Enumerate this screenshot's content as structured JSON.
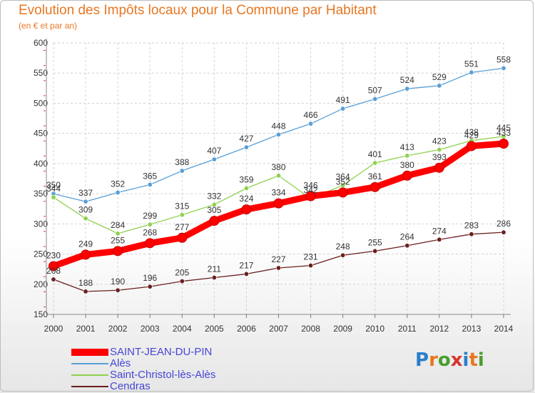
{
  "title": "Evolution des Impôts locaux pour la Commune par Habitant",
  "subtitle": "(en € et par an)",
  "logo": {
    "text": [
      "P",
      "r",
      "o",
      "x",
      "i",
      "t",
      "i"
    ],
    "colors": [
      "#2a7fc9",
      "#e87722",
      "#4a9e2f",
      "#d6342c",
      "#2a7fc9",
      "#e87722",
      "#4a9e2f"
    ]
  },
  "chart_data": {
    "type": "line",
    "title": "Evolution des Impôts locaux pour la Commune par Habitant",
    "subtitle": "(en € et par an)",
    "xlabel": "",
    "ylabel": "",
    "x": [
      "2000",
      "2001",
      "2002",
      "2003",
      "2004",
      "2005",
      "2006",
      "2007",
      "2008",
      "2009",
      "2010",
      "2011",
      "2012",
      "2013",
      "2014"
    ],
    "ylim": [
      150,
      600
    ],
    "yticks": [
      "150",
      "200",
      "250",
      "300",
      "350",
      "400",
      "450",
      "500",
      "550",
      "600"
    ],
    "series": [
      {
        "name": "SAINT-JEAN-DU-PIN",
        "color": "#ff0000",
        "values": [
          230,
          249,
          255,
          268,
          277,
          305,
          324,
          334,
          346,
          352,
          361,
          380,
          393,
          429,
          433
        ]
      },
      {
        "name": "Alès",
        "color": "#5a9fd6",
        "values": [
          350,
          337,
          352,
          365,
          388,
          407,
          427,
          448,
          466,
          491,
          507,
          524,
          529,
          551,
          558
        ]
      },
      {
        "name": "Saint-Christol-lès-Alès",
        "color": "#8fd14f",
        "values": [
          344,
          309,
          284,
          299,
          315,
          332,
          359,
          380,
          342,
          364,
          401,
          413,
          423,
          438,
          445
        ]
      },
      {
        "name": "Cendras",
        "color": "#6b1f1f",
        "values": [
          208,
          188,
          190,
          196,
          205,
          211,
          217,
          227,
          231,
          248,
          255,
          264,
          274,
          283,
          286
        ]
      }
    ]
  }
}
